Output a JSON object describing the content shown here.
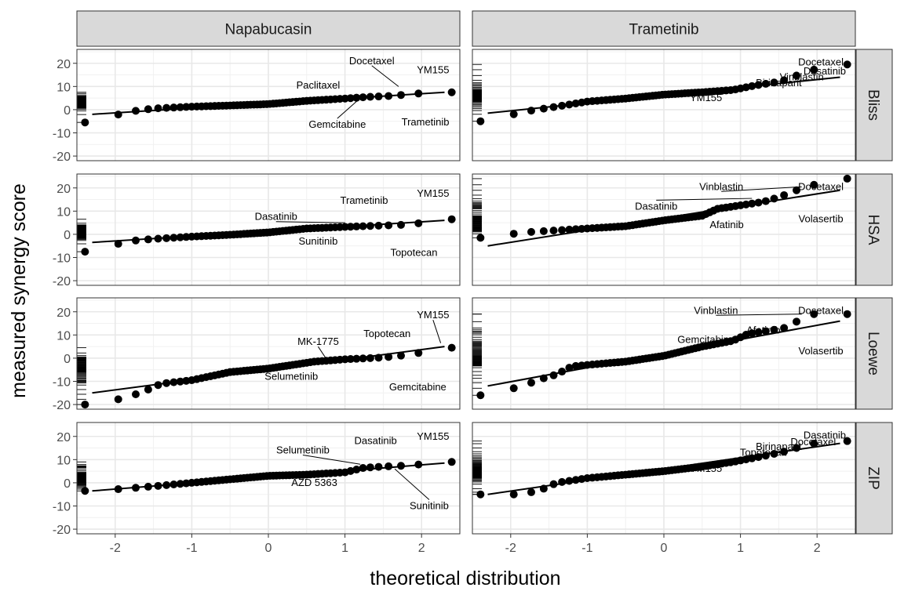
{
  "chart_data": {
    "type": "scatter",
    "subtype": "qq-plot-facet-grid",
    "xlabel": "theoretical distribution",
    "ylabel": "measured synergy score",
    "xlim": [
      -2.5,
      2.5
    ],
    "ylim": [
      -22,
      26
    ],
    "x_ticks": [
      -2,
      -1,
      0,
      1,
      2
    ],
    "x_tick_labels": [
      "-2",
      "-1",
      "0",
      "1",
      "2"
    ],
    "y_ticks": [
      -20,
      -10,
      0,
      10,
      20
    ],
    "y_tick_labels": [
      "-20",
      "-10",
      "0",
      "10",
      "20"
    ],
    "grid": true,
    "rug": true,
    "columns": [
      "Napabucasin",
      "Trametinib"
    ],
    "rows": [
      "Bliss",
      "HSA",
      "Loewe",
      "ZIP"
    ],
    "panels": [
      {
        "col": "Napabucasin",
        "row": "Bliss",
        "anchors": [
          [
            -2.3,
            -5.5
          ],
          [
            -1.85,
            -1
          ],
          [
            -1.5,
            0.5
          ],
          [
            -1.0,
            1.3
          ],
          [
            -0.5,
            1.8
          ],
          [
            0,
            2.4
          ],
          [
            0.5,
            3.8
          ],
          [
            1.0,
            4.8
          ],
          [
            1.3,
            5.5
          ],
          [
            1.65,
            6
          ],
          [
            1.85,
            6.8
          ],
          [
            2.3,
            7.5
          ]
        ],
        "n_points": 60,
        "line": [
          [
            -2.3,
            -2
          ],
          [
            2.3,
            7.5
          ]
        ],
        "labels": [
          {
            "text": "Docetaxel",
            "x": 1.35,
            "y": 21,
            "lead_to": [
              1.7,
              10
            ]
          },
          {
            "text": "YM155",
            "x": 2.15,
            "y": 17
          },
          {
            "text": "Paclitaxel",
            "x": 0.65,
            "y": 10.5
          },
          {
            "text": "Gemcitabine",
            "x": 0.9,
            "y": -6.5,
            "lead_to": [
              1.2,
              5
            ]
          },
          {
            "text": "Trametinib",
            "x": 2.05,
            "y": -5.5
          }
        ]
      },
      {
        "col": "Trametinib",
        "row": "Bliss",
        "anchors": [
          [
            -2.3,
            -5
          ],
          [
            -1.85,
            -1
          ],
          [
            -1.5,
            0.8
          ],
          [
            -1.0,
            3.5
          ],
          [
            -0.5,
            4.8
          ],
          [
            0,
            6.5
          ],
          [
            0.5,
            7.5
          ],
          [
            0.9,
            8.5
          ],
          [
            1.2,
            10.5
          ],
          [
            1.5,
            12
          ],
          [
            1.65,
            13.5
          ],
          [
            1.85,
            16.5
          ],
          [
            2.3,
            19.5
          ]
        ],
        "n_points": 60,
        "line": [
          [
            -2.3,
            -1.5
          ],
          [
            2.3,
            14
          ]
        ],
        "labels": [
          {
            "text": "Docetaxel",
            "x": 2.05,
            "y": 20.5
          },
          {
            "text": "Dasatinib",
            "x": 2.1,
            "y": 16.5
          },
          {
            "text": "Vinblastin",
            "x": 1.8,
            "y": 14
          },
          {
            "text": "Birinapant",
            "x": 1.5,
            "y": 11.5
          },
          {
            "text": "YM155",
            "x": 0.55,
            "y": 5
          }
        ]
      },
      {
        "col": "Napabucasin",
        "row": "HSA",
        "anchors": [
          [
            -2.3,
            -7.5
          ],
          [
            -1.85,
            -3
          ],
          [
            -1.5,
            -2
          ],
          [
            -1.0,
            -1
          ],
          [
            -0.5,
            -0.2
          ],
          [
            0,
            0.8
          ],
          [
            0.5,
            2.5
          ],
          [
            1.0,
            3.2
          ],
          [
            1.5,
            3.8
          ],
          [
            1.85,
            4.2
          ],
          [
            2.3,
            6.5
          ]
        ],
        "n_points": 60,
        "line": [
          [
            -2.3,
            -3.5
          ],
          [
            2.3,
            6
          ]
        ],
        "labels": [
          {
            "text": "YM155",
            "x": 2.15,
            "y": 17.5
          },
          {
            "text": "Trametinib",
            "x": 1.25,
            "y": 14.5
          },
          {
            "text": "Dasatinib",
            "x": 0.1,
            "y": 7.5,
            "lead_to": [
              1.0,
              5
            ]
          },
          {
            "text": "Sunitinib",
            "x": 0.65,
            "y": -3
          },
          {
            "text": "Topotecan",
            "x": 1.9,
            "y": -8
          }
        ]
      },
      {
        "col": "Trametinib",
        "row": "HSA",
        "anchors": [
          [
            -2.3,
            -1.5
          ],
          [
            -1.85,
            0.8
          ],
          [
            -1.5,
            1.5
          ],
          [
            -1.0,
            2.5
          ],
          [
            -0.5,
            3.5
          ],
          [
            0,
            6
          ],
          [
            0.5,
            8
          ],
          [
            0.7,
            11
          ],
          [
            1.0,
            12.5
          ],
          [
            1.3,
            14
          ],
          [
            1.5,
            16
          ],
          [
            1.85,
            20.5
          ],
          [
            2.3,
            24
          ]
        ],
        "n_points": 60,
        "line": [
          [
            -2.3,
            -5
          ],
          [
            2.3,
            19
          ]
        ],
        "labels": [
          {
            "text": "Vinblastin",
            "x": 0.75,
            "y": 20.5,
            "lead_to": [
              1.8,
              20.5
            ]
          },
          {
            "text": "Docetaxel",
            "x": 2.05,
            "y": 20.5
          },
          {
            "text": "Dasatinib",
            "x": -0.1,
            "y": 12,
            "lead_to": [
              1.15,
              15.5
            ]
          },
          {
            "text": "Afatinib",
            "x": 0.82,
            "y": 4
          },
          {
            "text": "Volasertib",
            "x": 2.05,
            "y": 6.5
          }
        ]
      },
      {
        "col": "Napabucasin",
        "row": "Loewe",
        "anchors": [
          [
            -2.3,
            -20
          ],
          [
            -1.85,
            -17
          ],
          [
            -1.6,
            -14
          ],
          [
            -1.4,
            -11
          ],
          [
            -1.0,
            -9.5
          ],
          [
            -0.5,
            -6
          ],
          [
            0,
            -4.5
          ],
          [
            0.3,
            -3
          ],
          [
            0.6,
            -1.5
          ],
          [
            1.0,
            -0.5
          ],
          [
            1.5,
            0.3
          ],
          [
            1.85,
            1.5
          ],
          [
            2.3,
            4.5
          ]
        ],
        "n_points": 60,
        "line": [
          [
            -2.3,
            -15
          ],
          [
            2.3,
            5
          ]
        ],
        "labels": [
          {
            "text": "YM155",
            "x": 2.15,
            "y": 18.5,
            "lead_to": [
              2.25,
              6.5
            ]
          },
          {
            "text": "Topotecan",
            "x": 1.55,
            "y": 10.5
          },
          {
            "text": "MK-1775",
            "x": 0.65,
            "y": 7,
            "lead_to": [
              0.75,
              0
            ]
          },
          {
            "text": "Selumetinib",
            "x": 0.3,
            "y": -8
          },
          {
            "text": "Gemcitabine",
            "x": 1.95,
            "y": -12.5
          }
        ]
      },
      {
        "col": "Trametinib",
        "row": "Loewe",
        "anchors": [
          [
            -2.3,
            -16
          ],
          [
            -1.85,
            -12
          ],
          [
            -1.6,
            -9
          ],
          [
            -1.4,
            -7
          ],
          [
            -1.2,
            -3.5
          ],
          [
            -0.5,
            -1.5
          ],
          [
            0,
            1
          ],
          [
            0.5,
            5
          ],
          [
            0.9,
            7.5
          ],
          [
            1.1,
            10.5
          ],
          [
            1.4,
            12
          ],
          [
            1.65,
            13.5
          ],
          [
            1.85,
            19
          ],
          [
            2.3,
            19
          ]
        ],
        "n_points": 60,
        "line": [
          [
            -2.3,
            -12
          ],
          [
            2.3,
            16
          ]
        ],
        "labels": [
          {
            "text": "Vinblastin",
            "x": 0.68,
            "y": 20.5,
            "lead_to": [
              1.8,
              19
            ]
          },
          {
            "text": "Docetaxel",
            "x": 2.05,
            "y": 20.5
          },
          {
            "text": "Afatinib",
            "x": 1.3,
            "y": 12
          },
          {
            "text": "Gemcitabine",
            "x": 0.55,
            "y": 8
          },
          {
            "text": "Volasertib",
            "x": 2.05,
            "y": 3
          }
        ]
      },
      {
        "col": "Napabucasin",
        "row": "ZIP",
        "anchors": [
          [
            -2.3,
            -3.5
          ],
          [
            -1.85,
            -2.5
          ],
          [
            -1.5,
            -1.5
          ],
          [
            -1.0,
            0
          ],
          [
            -0.5,
            1.5
          ],
          [
            0,
            3
          ],
          [
            0.5,
            3.5
          ],
          [
            1.0,
            4.5
          ],
          [
            1.25,
            6.5
          ],
          [
            1.5,
            7
          ],
          [
            1.85,
            7.5
          ],
          [
            2.3,
            9
          ]
        ],
        "n_points": 60,
        "line": [
          [
            -2.3,
            -3.5
          ],
          [
            2.3,
            8.5
          ]
        ],
        "labels": [
          {
            "text": "Dasatinib",
            "x": 1.4,
            "y": 18
          },
          {
            "text": "YM155",
            "x": 2.15,
            "y": 20
          },
          {
            "text": "Selumetinib",
            "x": 0.45,
            "y": 14,
            "lead_to": [
              1.2,
              8
            ]
          },
          {
            "text": "AZD 5363",
            "x": 0.6,
            "y": 0,
            "lead_to": [
              1.05,
              5
            ]
          },
          {
            "text": "Sunitinib",
            "x": 2.1,
            "y": -10,
            "lead_to": [
              1.65,
              6
            ]
          }
        ]
      },
      {
        "col": "Trametinib",
        "row": "ZIP",
        "anchors": [
          [
            -2.3,
            -5
          ],
          [
            -1.85,
            -5
          ],
          [
            -1.6,
            -3
          ],
          [
            -1.4,
            0
          ],
          [
            -1.0,
            2
          ],
          [
            -0.5,
            3.5
          ],
          [
            0,
            5
          ],
          [
            0.5,
            7
          ],
          [
            0.9,
            9
          ],
          [
            1.3,
            11.5
          ],
          [
            1.65,
            14
          ],
          [
            1.85,
            16.5
          ],
          [
            2.3,
            18
          ]
        ],
        "n_points": 60,
        "line": [
          [
            -2.3,
            -5
          ],
          [
            2.3,
            17
          ]
        ],
        "labels": [
          {
            "text": "Dasatinib",
            "x": 2.1,
            "y": 20.5
          },
          {
            "text": "Docetaxel",
            "x": 1.95,
            "y": 17.5
          },
          {
            "text": "Birinapant",
            "x": 1.5,
            "y": 15.5
          },
          {
            "text": "Topotecan",
            "x": 1.3,
            "y": 13
          },
          {
            "text": "YM155",
            "x": 0.55,
            "y": 6
          }
        ]
      }
    ]
  }
}
